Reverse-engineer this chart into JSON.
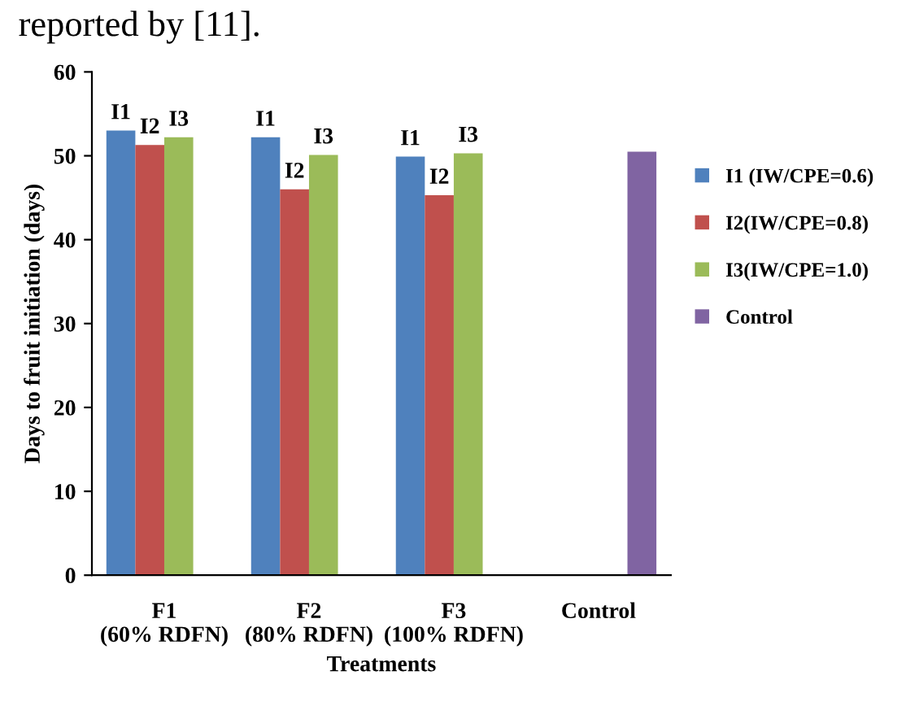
{
  "chart_data": {
    "type": "bar",
    "xlabel": "Treatments",
    "ylabel": "Days to fruit initiation (days)",
    "categories": [
      "F1\n(60% RDFN)",
      "F2\n(80% RDFN)",
      "F3\n(100% RDFN)",
      "Control"
    ],
    "series": [
      {
        "name": "I1 (IW/CPE=0.6)",
        "color": "#4f81bd",
        "values": [
          53.0,
          52.2,
          49.9,
          null
        ]
      },
      {
        "name": "I2(IW/CPE=0.8)",
        "color": "#c0504d",
        "values": [
          51.3,
          46.0,
          45.3,
          null
        ]
      },
      {
        "name": "I3(IW/CPE=1.0)",
        "color": "#9bbb59",
        "values": [
          52.2,
          50.1,
          50.3,
          null
        ]
      },
      {
        "name": "Control",
        "color": "#8064a2",
        "values": [
          null,
          null,
          null,
          50.5
        ]
      }
    ],
    "ylim": [
      0,
      60
    ],
    "yticks": [
      0,
      10,
      20,
      30,
      40,
      50,
      60
    ],
    "grid": false,
    "legend": "right",
    "annotations": [
      "reported by [11].",
      "I1",
      "I2",
      "I3",
      "I1",
      "I2",
      "I3",
      "I1",
      "I2",
      "I3"
    ]
  }
}
